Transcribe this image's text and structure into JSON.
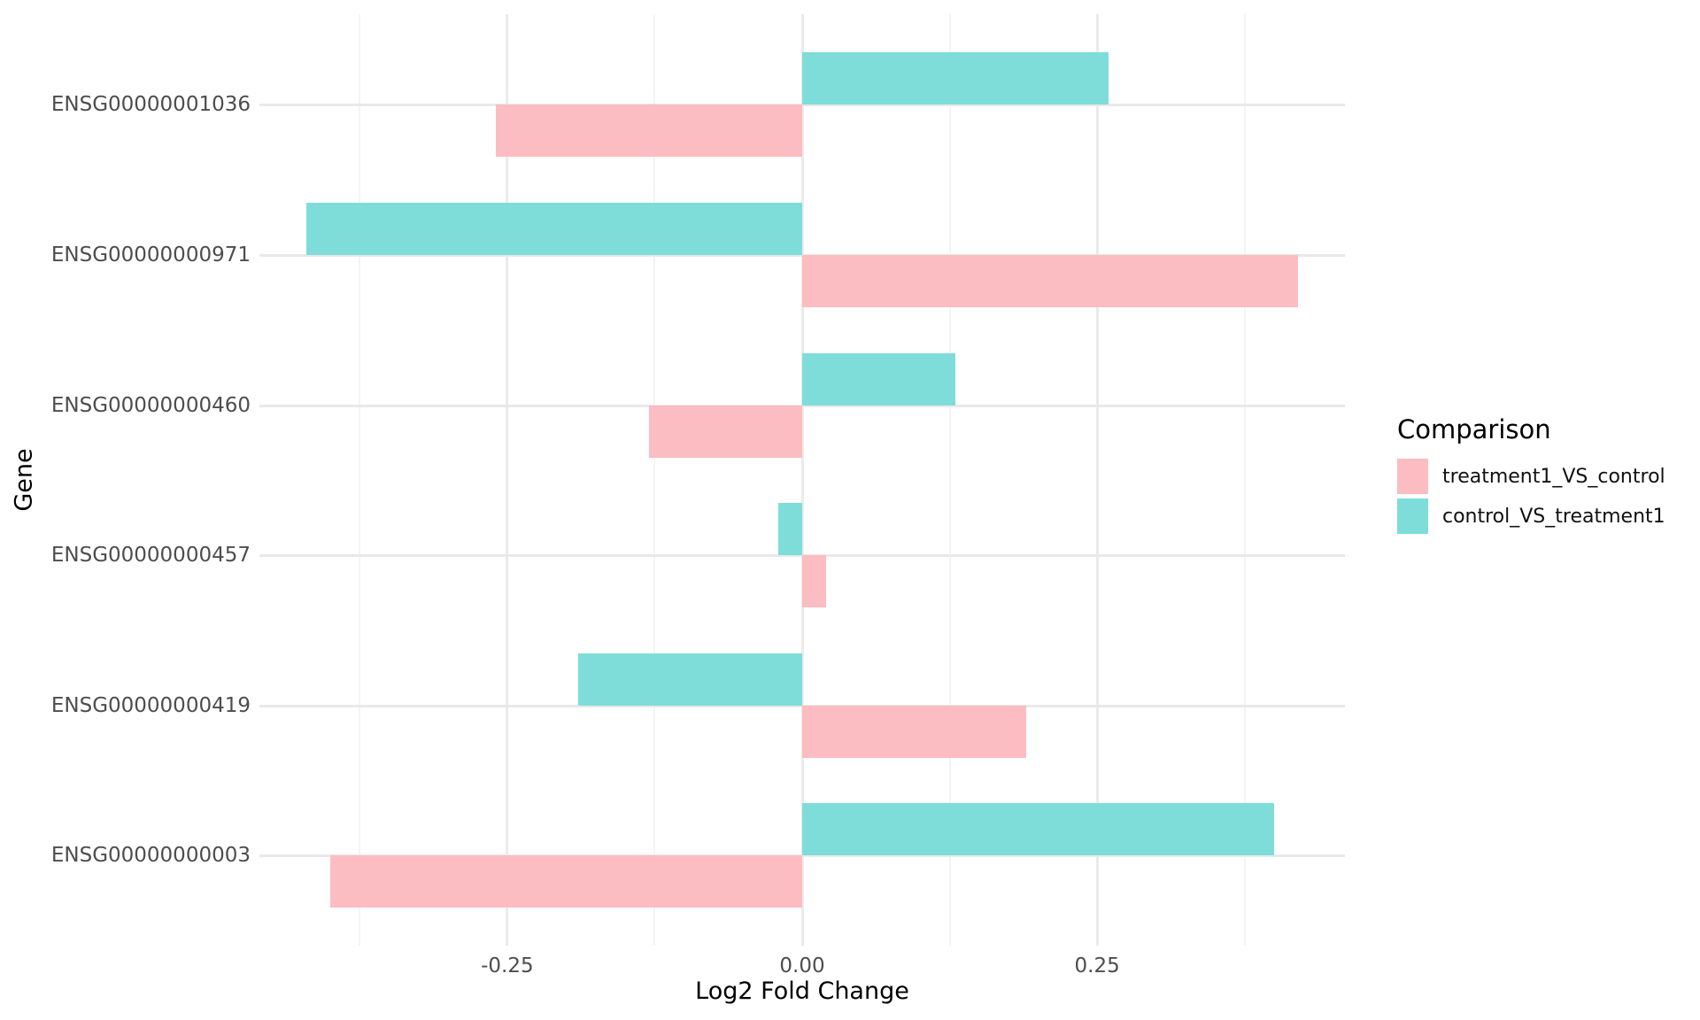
{
  "colors": {
    "background": "#FFFFFF",
    "tick_text": "#4D4D4D",
    "title_text": "#000000",
    "grid_major": "#EBEBEB",
    "grid_minor": "#F4F4F4",
    "grid_row": "#E9E9E9",
    "series_pink": "#FBBDC1",
    "series_teal": "#7EDDD9"
  },
  "chart_data": {
    "type": "bar",
    "orientation": "horizontal",
    "title": "",
    "xlabel": "Log2 Fold Change",
    "ylabel": "Gene",
    "categories": [
      "ENSG00000001036",
      "ENSG00000000971",
      "ENSG00000000460",
      "ENSG00000000457",
      "ENSG00000000419",
      "ENSG00000000003"
    ],
    "series": [
      {
        "name": "treatment1_VS_control",
        "color": "#FBBDC1",
        "position_in_row": "below-centerline",
        "values": [
          -0.26,
          0.42,
          -0.13,
          0.02,
          0.19,
          -0.4
        ]
      },
      {
        "name": "control_VS_treatment1",
        "color": "#7EDDD9",
        "position_in_row": "above-centerline",
        "values": [
          0.26,
          -0.42,
          0.13,
          -0.02,
          -0.19,
          0.4
        ]
      }
    ],
    "xlim": [
      -0.46,
      0.46
    ],
    "x_major_gridlines": [
      -0.25,
      0,
      0.25
    ],
    "x_tick_values": [
      -0.25,
      0,
      0.25
    ],
    "x_tick_labels": [
      "-0.25",
      "0.00",
      "0.25"
    ],
    "x_minor_gridlines": [
      -0.375,
      -0.125,
      0.125,
      0.375
    ],
    "grid": true,
    "legend": {
      "title": "Comparison",
      "position": "right",
      "entries": [
        "treatment1_VS_control",
        "control_VS_treatment1"
      ]
    }
  }
}
